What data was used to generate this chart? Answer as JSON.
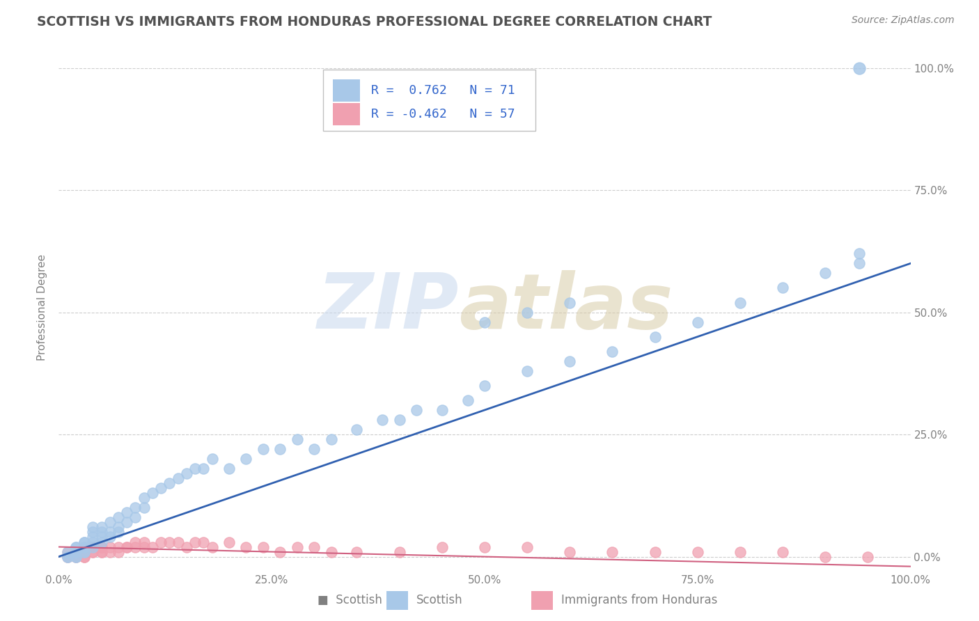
{
  "title": "SCOTTISH VS IMMIGRANTS FROM HONDURAS PROFESSIONAL DEGREE CORRELATION CHART",
  "source": "Source: ZipAtlas.com",
  "ylabel": "Professional Degree",
  "watermark_zip": "ZIP",
  "watermark_atlas": "atlas",
  "legend_r1_val": "0.762",
  "legend_r1_n": "71",
  "legend_r2_val": "-0.462",
  "legend_r2_n": "57",
  "blue_scatter_color": "#A8C8E8",
  "pink_scatter_color": "#F0A0B0",
  "blue_line_color": "#3060B0",
  "pink_line_color": "#D06080",
  "title_color": "#505050",
  "axis_color": "#808080",
  "grid_color": "#C8C8C8",
  "legend_text_color": "#3366CC",
  "legend_r_color": "#3366CC",
  "background_color": "#FFFFFF",
  "scottish_x": [
    1,
    1,
    1,
    2,
    2,
    2,
    2,
    2,
    2,
    3,
    3,
    3,
    3,
    3,
    3,
    4,
    4,
    4,
    4,
    4,
    5,
    5,
    5,
    5,
    6,
    6,
    6,
    7,
    7,
    7,
    8,
    8,
    9,
    9,
    10,
    10,
    11,
    12,
    13,
    14,
    15,
    16,
    17,
    18,
    20,
    22,
    24,
    26,
    28,
    30,
    32,
    35,
    38,
    40,
    42,
    45,
    48,
    50,
    55,
    60,
    65,
    70,
    75,
    80,
    85,
    90,
    94,
    94,
    50,
    55,
    60
  ],
  "scottish_y": [
    0,
    0,
    1,
    0,
    0,
    1,
    1,
    2,
    2,
    1,
    1,
    2,
    2,
    3,
    3,
    2,
    3,
    4,
    5,
    6,
    3,
    4,
    5,
    6,
    4,
    5,
    7,
    5,
    6,
    8,
    7,
    9,
    8,
    10,
    10,
    12,
    13,
    14,
    15,
    16,
    17,
    18,
    18,
    20,
    18,
    20,
    22,
    22,
    24,
    22,
    24,
    26,
    28,
    28,
    30,
    30,
    32,
    35,
    38,
    40,
    42,
    45,
    48,
    52,
    55,
    58,
    60,
    62,
    48,
    50,
    52
  ],
  "honduras_x": [
    1,
    1,
    1,
    2,
    2,
    2,
    2,
    3,
    3,
    3,
    3,
    4,
    4,
    4,
    4,
    5,
    5,
    5,
    5,
    6,
    6,
    7,
    7,
    8,
    8,
    9,
    9,
    10,
    10,
    11,
    12,
    13,
    14,
    15,
    16,
    17,
    18,
    20,
    22,
    24,
    26,
    28,
    30,
    32,
    35,
    40,
    45,
    50,
    55,
    60,
    65,
    70,
    75,
    80,
    85,
    90,
    95
  ],
  "honduras_y": [
    0,
    0,
    1,
    0,
    0,
    1,
    1,
    0,
    0,
    1,
    1,
    1,
    1,
    2,
    2,
    1,
    1,
    2,
    2,
    1,
    2,
    1,
    2,
    2,
    2,
    2,
    3,
    2,
    3,
    2,
    3,
    3,
    3,
    2,
    3,
    3,
    2,
    3,
    2,
    2,
    1,
    2,
    2,
    1,
    1,
    1,
    2,
    2,
    2,
    1,
    1,
    1,
    1,
    1,
    1,
    0,
    0
  ],
  "blue_trend_x": [
    0,
    100
  ],
  "blue_trend_y": [
    0,
    60
  ],
  "pink_trend_x": [
    0,
    100
  ],
  "pink_trend_y": [
    2,
    -2
  ],
  "xlim": [
    0,
    100
  ],
  "ylim": [
    -3,
    105
  ],
  "xticks": [
    0,
    25,
    50,
    75,
    100
  ],
  "yticks": [
    0,
    25,
    50,
    75,
    100
  ],
  "xtick_labels": [
    "0.0%",
    "25.0%",
    "50.0%",
    "75.0%",
    "100.0%"
  ],
  "ytick_labels": [
    "0.0%",
    "25.0%",
    "50.0%",
    "75.0%",
    "100.0%"
  ],
  "outlier_x": 94,
  "outlier_y": 100
}
